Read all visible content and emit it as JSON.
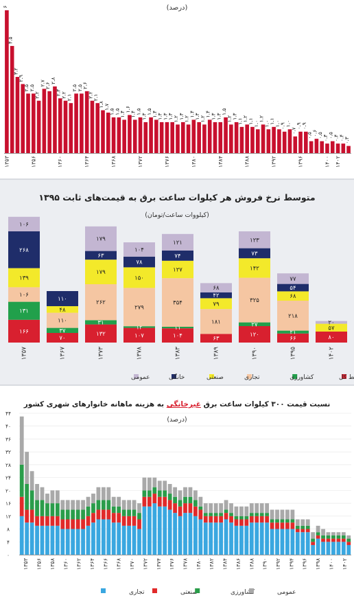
{
  "chart_data": [
    {
      "type": "bar",
      "title": "",
      "subtitle": "(درصد)",
      "categories": [
        "۱۳۵۳",
        "",
        "",
        "",
        "",
        "۱۳۵۶",
        "",
        "",
        "",
        "",
        "۱۳۶۰",
        "",
        "",
        "",
        "",
        "۱۳۶۴",
        "",
        "",
        "",
        "",
        "۱۳۶۸",
        "",
        "",
        "",
        "",
        "۱۳۷۲",
        "",
        "",
        "",
        "",
        "۱۳۷۶",
        "",
        "",
        "",
        "",
        "۱۳۸۰",
        "",
        "",
        "",
        "",
        "۱۳۸۴",
        "",
        "",
        "",
        "",
        "۱۳۸۸",
        "",
        "",
        "",
        "",
        "۱۳۹۲",
        "",
        "",
        "",
        "",
        "۱۳۹۶",
        "",
        "",
        "",
        "",
        "۱۴۰۰",
        "",
        "۱۴۰۲"
      ],
      "values": [
        6,
        4.5,
        3.2,
        2.9,
        2.5,
        2.5,
        2.2,
        2.7,
        2.6,
        2.8,
        2.3,
        2.2,
        2.1,
        2.5,
        2.5,
        2.6,
        2.2,
        2.1,
        1.8,
        1.7,
        1.5,
        1.5,
        1.4,
        1.6,
        1.4,
        1.5,
        1.3,
        1.5,
        1.4,
        1.3,
        1.3,
        1.3,
        1.2,
        1.3,
        1.2,
        1.4,
        1.3,
        1.2,
        1.4,
        1.3,
        1.3,
        1.5,
        1.2,
        1.3,
        1.1,
        1.2,
        1.1,
        1.0,
        1.2,
        1.0,
        1.1,
        1.0,
        0.9,
        1.0,
        0.7,
        0.9,
        0.9,
        0.5,
        0.6,
        0.5,
        0.4,
        0.5,
        0.4,
        0.4,
        0.3
      ],
      "labels": [
        "۶",
        "۴.۵",
        "۳.۲",
        "۲.۹",
        "۲.۵",
        "۲.۵",
        "۲.۲",
        "۲.۷",
        "۲.۶",
        "۲.۸",
        "۲.۳",
        "۲.۲",
        "۲.۱",
        "۲.۵",
        "۲.۵",
        "۲.۶",
        "۲.۲",
        "۲.۱",
        "۱.۸",
        "۱.۷",
        "۱.۵",
        "۱.۵",
        "۱.۴",
        "۱.۶",
        "۱.۴",
        "۱.۵",
        "۱.۳",
        "۱.۵",
        "۱.۴",
        "۱.۳",
        "۱.۳",
        "۱.۳",
        "۱.۲",
        "۱.۳",
        "۱.۲",
        "۱.۴",
        "۱.۳",
        "۱.۲",
        "۱.۴",
        "۱.۳",
        "۱.۳",
        "۱.۵",
        "۱.۲",
        "۱.۳",
        "۱.۱",
        "۱.۲",
        "۱.۱",
        "۱.۰",
        "۱.۲",
        "۱.۰",
        "۱.۱",
        "۱.۰",
        "۰.۹",
        "۱.۰",
        "۰.۷",
        "۰.۹",
        "۰.۹",
        "۰.۵",
        "۰.۶",
        "۰.۵",
        "۰.۴",
        "۰.۵",
        "۰.۴",
        "۰.۴",
        "۰.۳"
      ],
      "ylim": [
        0,
        6.2
      ],
      "color": "#c8102e"
    },
    {
      "type": "bar",
      "title": "متوسط نرخ فروش هر کیلوات ساعت برق به قیمت‌های ثابت ۱۳۹۵",
      "subtitle": "(کیلووات ساعت/تومان)",
      "categories": [
        "۱۳۵۷",
        "۱۳۶۷",
        "۱۳۷۳",
        "۱۳۷۸",
        "۱۳۸۳",
        "۱۳۸۹",
        "۱۳۹۰",
        "۱۳۹۵",
        "۱۴۰۲"
      ],
      "series": [
        {
          "name": "عمومی",
          "color": "#c3b6d2",
          "values": [
            106,
            null,
            179,
            104,
            121,
            68,
            123,
            77,
            20
          ],
          "labels": [
            "۱۰۶",
            "",
            "۱۷۹",
            "۱۰۴",
            "۱۲۱",
            "۶۸",
            "۱۲۳",
            "۷۷",
            "۲۰"
          ]
        },
        {
          "name": "خانگی",
          "color": "#1f2d6a",
          "values": [
            268,
            110,
            63,
            78,
            74,
            42,
            73,
            54,
            null
          ],
          "labels": [
            "۲۶۸",
            "۱۱۰",
            "۶۳",
            "۷۸",
            "۷۴",
            "۴۲",
            "۷۳",
            "۵۴",
            ""
          ]
        },
        {
          "name": "صنعتی",
          "color": "#f3e92a",
          "values": [
            139,
            48,
            179,
            150,
            127,
            79,
            142,
            68,
            57
          ],
          "labels": [
            "۱۳۹",
            "۴۸",
            "۱۷۹",
            "۱۵۰",
            "۱۲۷",
            "۷۹",
            "۱۴۲",
            "۶۸",
            "۵۷"
          ]
        },
        {
          "name": "تجاری",
          "color": "#f5c6a2",
          "values": [
            106,
            110,
            262,
            279,
            354,
            181,
            325,
            218,
            null
          ],
          "labels": [
            "۱۰۶",
            "۱۱۰",
            "۲۶۲",
            "۲۷۹",
            "۳۵۴",
            "۱۸۱",
            "۳۲۵",
            "۲۱۸",
            ""
          ]
        },
        {
          "name": "کشاورزی",
          "color": "#21a04b",
          "values": [
            131,
            37,
            31,
            12,
            11,
            null,
            27,
            21,
            null
          ],
          "labels": [
            "۱۳۱",
            "۳۷",
            "۳۱",
            "۱۲",
            "۱۱",
            "",
            "۲۷",
            "۲۱",
            ""
          ]
        },
        {
          "name": "متوسط کل",
          "color": "#d8202f",
          "values": [
            166,
            70,
            132,
            107,
            104,
            63,
            120,
            66,
            80
          ],
          "labels": [
            "۱۶۶",
            "۷۰",
            "۱۳۲",
            "۱۰۷",
            "۱۰۴",
            "۶۳",
            "۱۲۰",
            "۶۶",
            "۸۰"
          ]
        }
      ]
    },
    {
      "type": "bar",
      "title": "نسبت قیمت ۳۰۰ کیلوات ساعت برق غیرخانگی به هزینه ماهانه خانوارهای شهری کشور",
      "title_parts": {
        "before": "نسبت قیمت ۳۰۰ کیلوات ساعت برق ",
        "highlight": "غیرخانگی",
        "after": " به هزینه ماهانه خانوارهای شهری کشور"
      },
      "subtitle": "(درصد)",
      "yticks": [
        "۰",
        "۴",
        "۸",
        "۱۲",
        "۱۶",
        "۲۰",
        "۲۴",
        "۲۸",
        "۳۲",
        "۳۶",
        "۴۰",
        "۴۴"
      ],
      "ylim": [
        0,
        44
      ],
      "xticks": [
        "۱۳۵۳",
        "۱۳۵۶",
        "۱۳۵۸",
        "۱۳۶۰",
        "۱۳۶۲",
        "۱۳۶۴",
        "۱۳۶۶",
        "۱۳۶۸",
        "۱۳۷۰",
        "۱۳۷۲",
        "۱۳۷۴",
        "۱۳۷۶",
        "۱۳۷۸",
        "۱۳۸۰",
        "۱۳۸۲",
        "۱۳۸۴",
        "۱۳۸۶",
        "۱۳۸۸",
        "۱۳۹۰",
        "۱۳۹۲",
        "۱۳۹۴",
        "۱۳۹۶",
        "۱۳۹۸",
        "۱۴۰۰",
        "۱۴۰۲"
      ],
      "series": [
        {
          "name": "تجاری",
          "color": "#3aa7e0",
          "values": [
            12,
            10,
            10,
            9,
            9,
            9,
            9,
            9,
            8,
            8,
            8,
            8,
            8,
            9,
            10,
            11,
            11,
            11,
            10,
            10,
            9,
            9,
            9,
            8,
            15,
            15,
            16,
            15,
            15,
            14,
            13,
            12,
            13,
            13,
            12,
            11,
            10,
            10,
            10,
            10,
            11,
            10,
            9,
            9,
            9,
            10,
            10,
            10,
            10,
            8,
            8,
            8,
            8,
            8,
            7,
            7,
            7,
            3,
            5,
            4,
            4,
            4,
            4,
            4,
            3
          ]
        },
        {
          "name": "صنعتی",
          "color": "#e12a2a",
          "values": [
            6,
            4,
            4,
            3,
            3,
            3,
            3,
            3,
            3,
            3,
            3,
            3,
            3,
            3,
            3,
            3,
            3,
            3,
            3,
            3,
            3,
            3,
            3,
            3,
            3,
            3,
            3,
            3,
            3,
            3,
            3,
            3,
            3,
            3,
            3,
            3,
            2,
            2,
            2,
            2,
            2,
            2,
            2,
            2,
            2,
            2,
            2,
            2,
            2,
            2,
            2,
            2,
            2,
            2,
            1,
            1,
            1,
            1,
            1,
            1,
            1,
            1,
            1,
            1,
            1
          ]
        },
        {
          "name": "کشاورزی",
          "color": "#2a9d4a",
          "values": [
            10,
            8,
            6,
            5,
            5,
            4,
            4,
            4,
            3,
            3,
            3,
            3,
            3,
            3,
            3,
            3,
            3,
            3,
            2,
            2,
            2,
            2,
            2,
            2,
            2,
            2,
            2,
            2,
            2,
            2,
            2,
            2,
            2,
            2,
            2,
            1,
            1,
            1,
            1,
            1,
            1,
            1,
            1,
            1,
            1,
            1,
            1,
            1,
            1,
            1,
            1,
            1,
            1,
            1,
            1,
            1,
            1,
            1,
            1,
            1,
            1,
            1,
            1,
            1,
            1
          ]
        },
        {
          "name": "عمومی",
          "color": "#a9a9a9",
          "values": [
            15,
            10,
            6,
            5,
            4,
            3,
            4,
            4,
            3,
            3,
            3,
            3,
            3,
            3,
            3,
            4,
            4,
            4,
            3,
            3,
            3,
            3,
            3,
            3,
            4,
            4,
            3,
            3,
            3,
            3,
            3,
            3,
            3,
            3,
            3,
            3,
            3,
            3,
            3,
            3,
            3,
            3,
            3,
            3,
            3,
            3,
            3,
            3,
            3,
            3,
            3,
            3,
            3,
            3,
            2,
            2,
            2,
            2,
            2,
            2,
            1,
            1,
            1,
            1,
            1
          ]
        }
      ]
    }
  ]
}
